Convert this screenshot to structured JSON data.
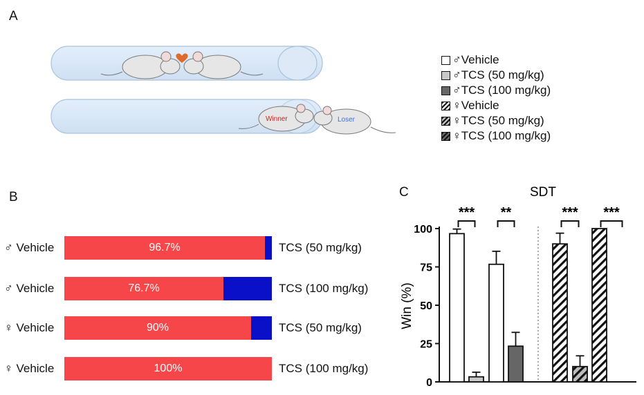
{
  "panel_a": {
    "letter": "A",
    "winner_label": "Winner",
    "loser_label": "Loser",
    "legend": [
      {
        "label": "♂Vehicle",
        "fill": "white"
      },
      {
        "label": "♂TCS (50 mg/kg)",
        "fill": "light"
      },
      {
        "label": "♂TCS (100 mg/kg)",
        "fill": "dark"
      },
      {
        "label": "♀Vehicle",
        "fill": "hatch-white"
      },
      {
        "label": "♀TCS (50 mg/kg)",
        "fill": "hatch-light"
      },
      {
        "label": "♀TCS (100 mg/kg)",
        "fill": "hatch-dark"
      }
    ]
  },
  "panel_b": {
    "letter": "B",
    "rows": [
      {
        "left": "♂ Vehicle",
        "right": "TCS (50 mg/kg)",
        "pct_label": "96.7%",
        "value": 96.7
      },
      {
        "left": "♂ Vehicle",
        "right": "TCS (100 mg/kg)",
        "pct_label": "76.7%",
        "value": 76.7
      },
      {
        "left": "♀ Vehicle",
        "right": "TCS (50 mg/kg)",
        "pct_label": "90%",
        "value": 90
      },
      {
        "left": "♀ Vehicle",
        "right": "TCS (100 mg/kg)",
        "pct_label": "100%",
        "value": 100
      }
    ],
    "colors": {
      "vehicle": "#f7464a",
      "tcs": "#0a10c8"
    }
  },
  "panel_c": {
    "letter": "C"
  },
  "chart_data": {
    "type": "bar",
    "title": "SDT",
    "ylabel": "Win (%)",
    "ylim": [
      0,
      100
    ],
    "yticks": [
      0,
      25,
      50,
      75,
      100
    ],
    "bars": [
      {
        "group": "♂Vehicle",
        "value": 96.7,
        "error": 3,
        "fill": "white"
      },
      {
        "group": "♂TCS (50 mg/kg)",
        "value": 3.3,
        "error": 3,
        "fill": "light"
      },
      {
        "group": "♂Vehicle",
        "value": 76.7,
        "error": 8.5,
        "fill": "white"
      },
      {
        "group": "♂TCS (100 mg/kg)",
        "value": 23.3,
        "error": 9,
        "fill": "dark"
      },
      {
        "group": "♀Vehicle",
        "value": 90,
        "error": 7,
        "fill": "hatch-white"
      },
      {
        "group": "♀TCS (50 mg/kg)",
        "value": 10,
        "error": 7,
        "fill": "hatch-light"
      },
      {
        "group": "♀Vehicle",
        "value": 100,
        "error": 0,
        "fill": "hatch-white"
      }
    ],
    "significance": [
      "***",
      "**",
      "***",
      "***"
    ]
  }
}
